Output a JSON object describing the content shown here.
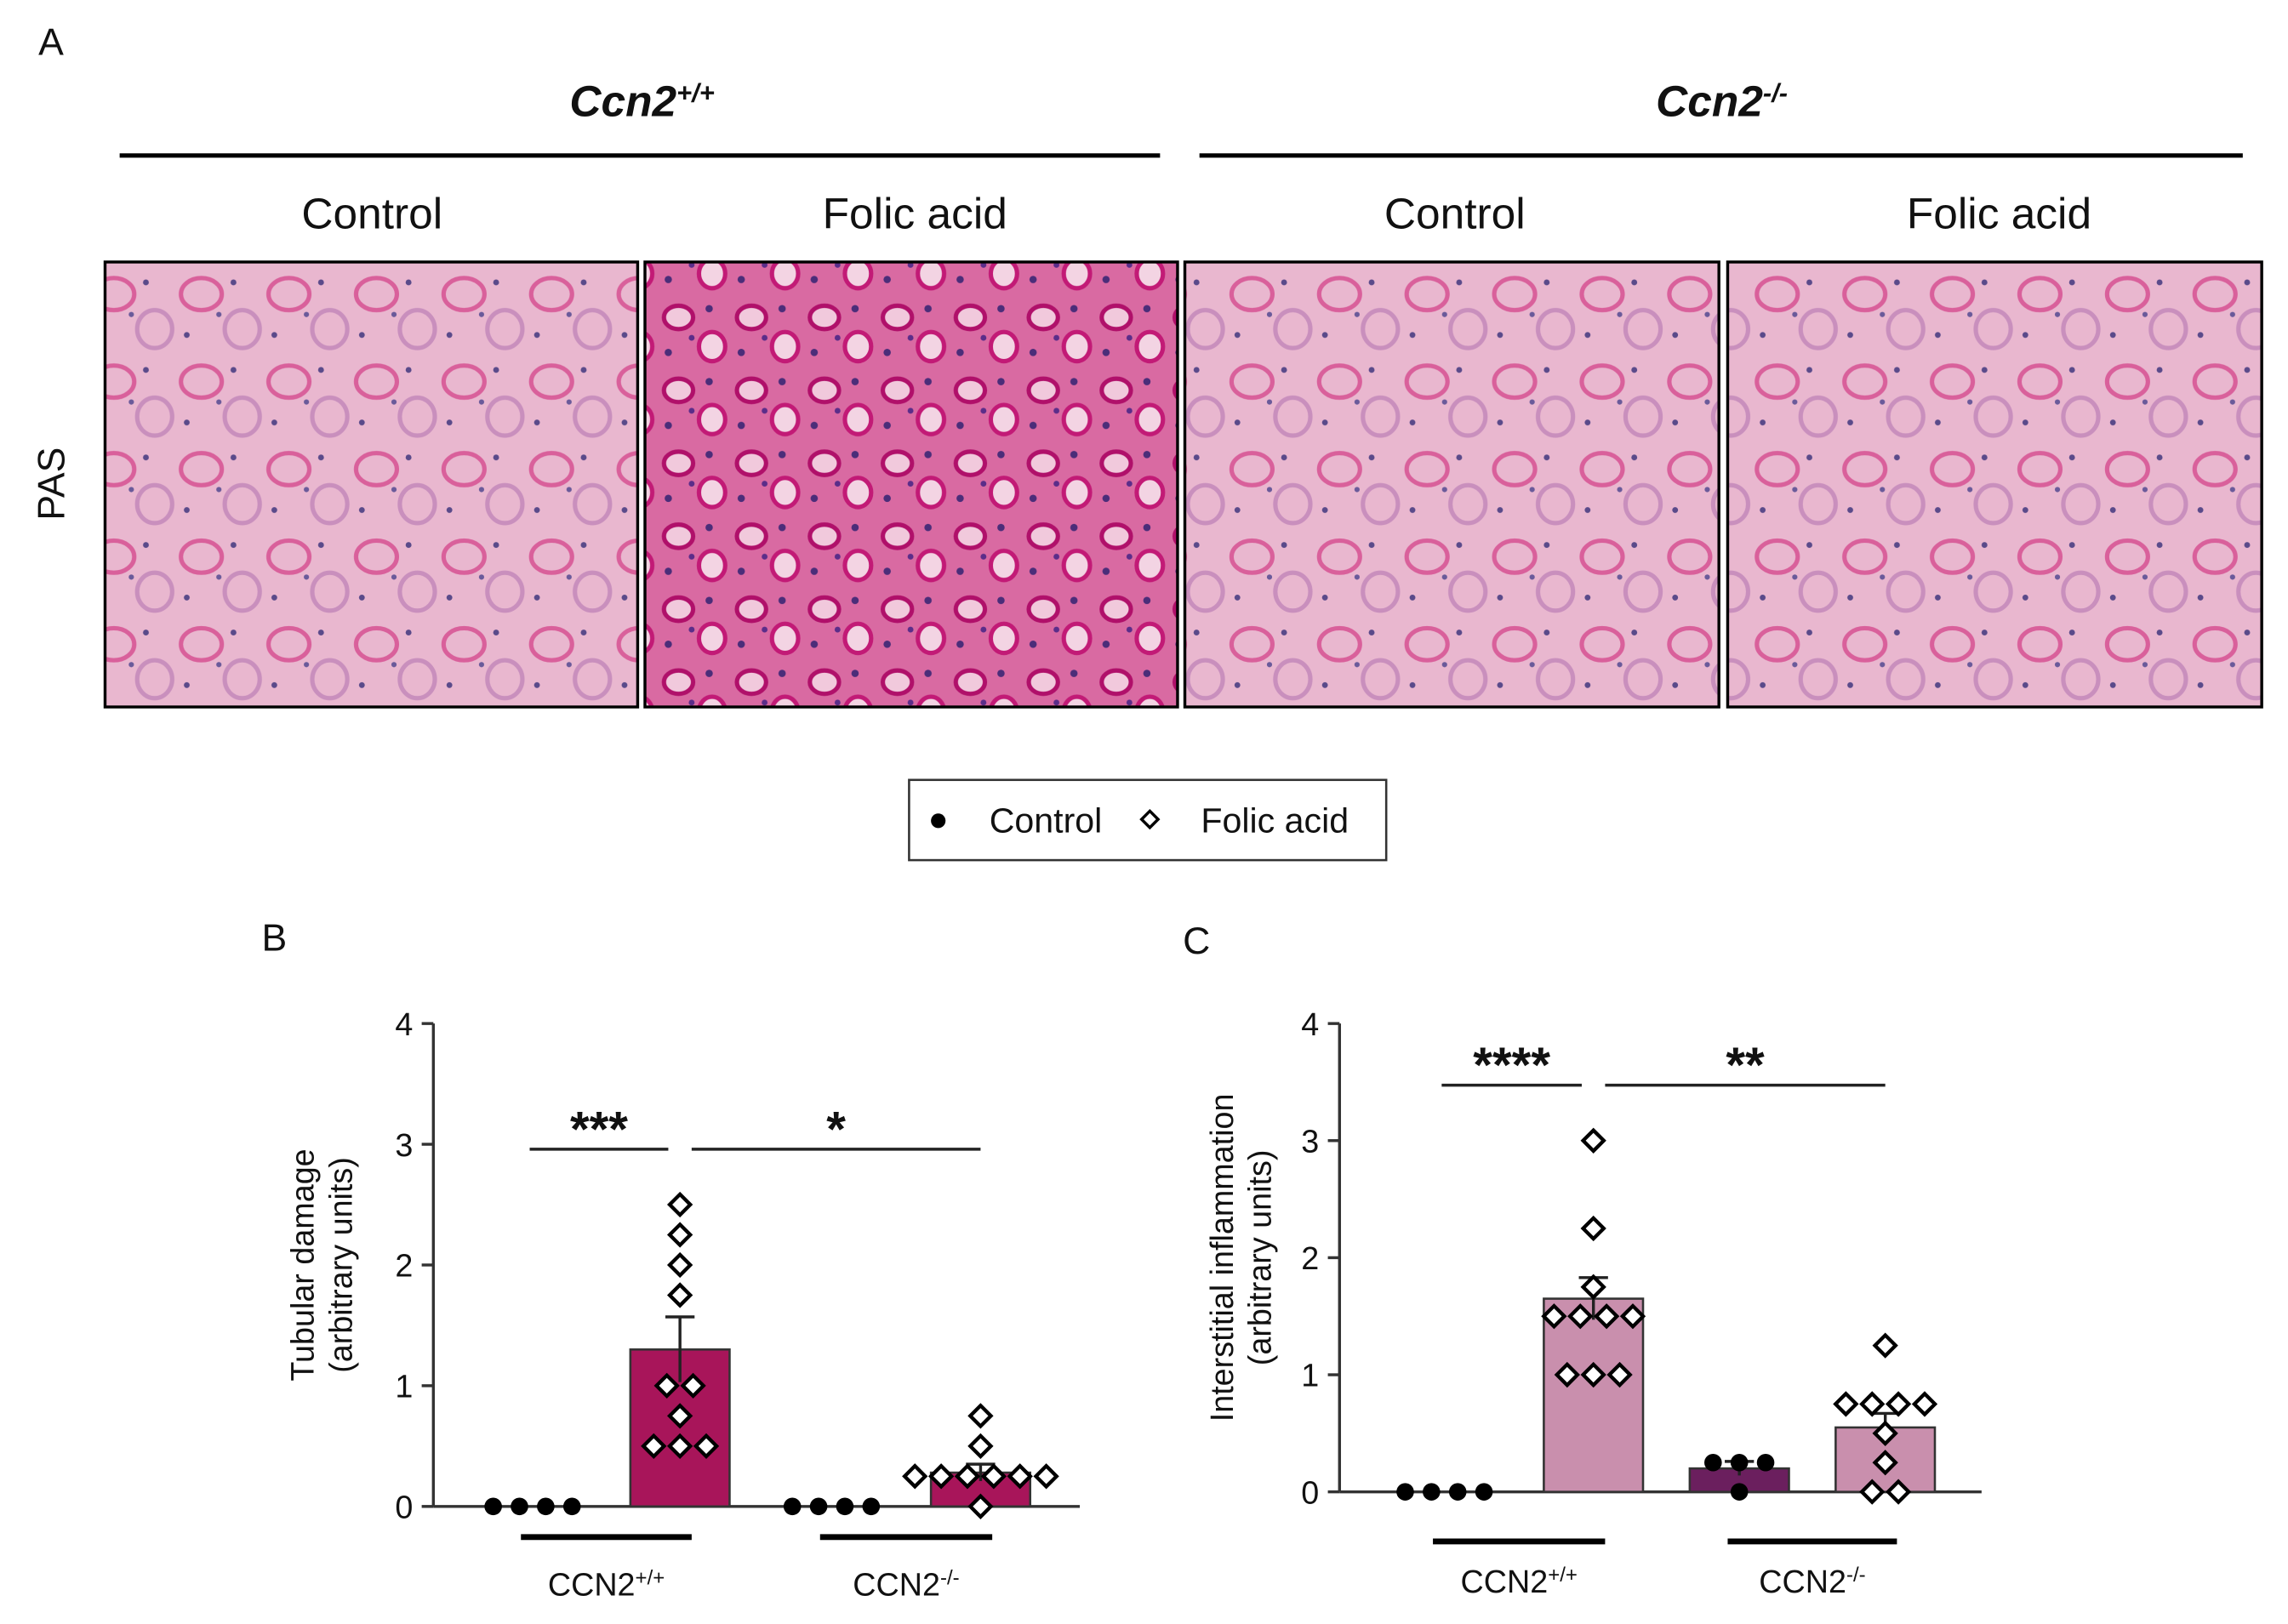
{
  "panel_a": {
    "label": "A",
    "row_label": "PAS",
    "genotypes": [
      {
        "name": "Ccn2",
        "sup": "+/+"
      },
      {
        "name": "Ccn2",
        "sup": "-/-"
      }
    ],
    "conditions": [
      "Control",
      "Folic acid",
      "Control",
      "Folic acid"
    ]
  },
  "legend": [
    "Control",
    "Folic acid"
  ],
  "chart_data": [
    {
      "type": "bar",
      "panel": "B",
      "ylabel": [
        "Tubular damage",
        "(arbitrary units)"
      ],
      "ylim": [
        0,
        4
      ],
      "yticks": [
        0,
        1,
        2,
        3,
        4
      ],
      "groups": [
        {
          "name": "CCN2",
          "sup": "+/+"
        },
        {
          "name": "CCN2",
          "sup": "-/-"
        }
      ],
      "series": [
        {
          "marker": "circle",
          "colors": [
            "#a8155a",
            "#a8155a"
          ],
          "values": [
            0,
            0
          ],
          "errors": [
            0,
            0
          ],
          "points": [
            [
              0,
              0,
              0,
              0
            ],
            [
              0,
              0,
              0,
              0
            ]
          ]
        },
        {
          "marker": "diamond",
          "colors": [
            "#a8155a",
            "#a8155a"
          ],
          "values": [
            1.3,
            0.28
          ],
          "errors": [
            0.27,
            0.07
          ],
          "points": [
            [
              2.5,
              2.25,
              2,
              1.75,
              1,
              1,
              0.75,
              0.5,
              0.5,
              0.5
            ],
            [
              0.75,
              0.5,
              0.25,
              0.25,
              0.25,
              0.25,
              0.25,
              0.25,
              0
            ]
          ]
        }
      ],
      "significance": [
        {
          "label": "***",
          "from": [
            0,
            0
          ],
          "to": [
            0,
            1
          ]
        },
        {
          "label": "*",
          "from": [
            0,
            1
          ],
          "to": [
            1,
            1
          ]
        }
      ]
    },
    {
      "type": "bar",
      "panel": "C",
      "ylabel": [
        "Interstitial inflammation",
        "(arbitrary units)"
      ],
      "ylim": [
        0,
        4
      ],
      "yticks": [
        0,
        1,
        2,
        3,
        4
      ],
      "groups": [
        {
          "name": "CCN2",
          "sup": "+/+"
        },
        {
          "name": "CCN2",
          "sup": "-/-"
        }
      ],
      "series": [
        {
          "marker": "circle",
          "colors": [
            "#c98fad",
            "#6b1f5e"
          ],
          "values": [
            0,
            0.2
          ],
          "errors": [
            0,
            0.06
          ],
          "points": [
            [
              0,
              0,
              0,
              0
            ],
            [
              0.25,
              0.25,
              0.25,
              0
            ]
          ]
        },
        {
          "marker": "diamond",
          "colors": [
            "#c98fad",
            "#c98fad"
          ],
          "values": [
            1.65,
            0.55
          ],
          "errors": [
            0.18,
            0.12
          ],
          "points": [
            [
              3,
              2.25,
              1.75,
              1.5,
              1.5,
              1.5,
              1.5,
              1,
              1,
              1
            ],
            [
              1.25,
              0.75,
              0.75,
              0.75,
              0.75,
              0.5,
              0.25,
              0,
              0
            ]
          ]
        }
      ],
      "significance": [
        {
          "label": "****",
          "from": [
            0,
            0
          ],
          "to": [
            0,
            1
          ]
        },
        {
          "label": "**",
          "from": [
            0,
            1
          ],
          "to": [
            1,
            1
          ]
        }
      ]
    }
  ]
}
